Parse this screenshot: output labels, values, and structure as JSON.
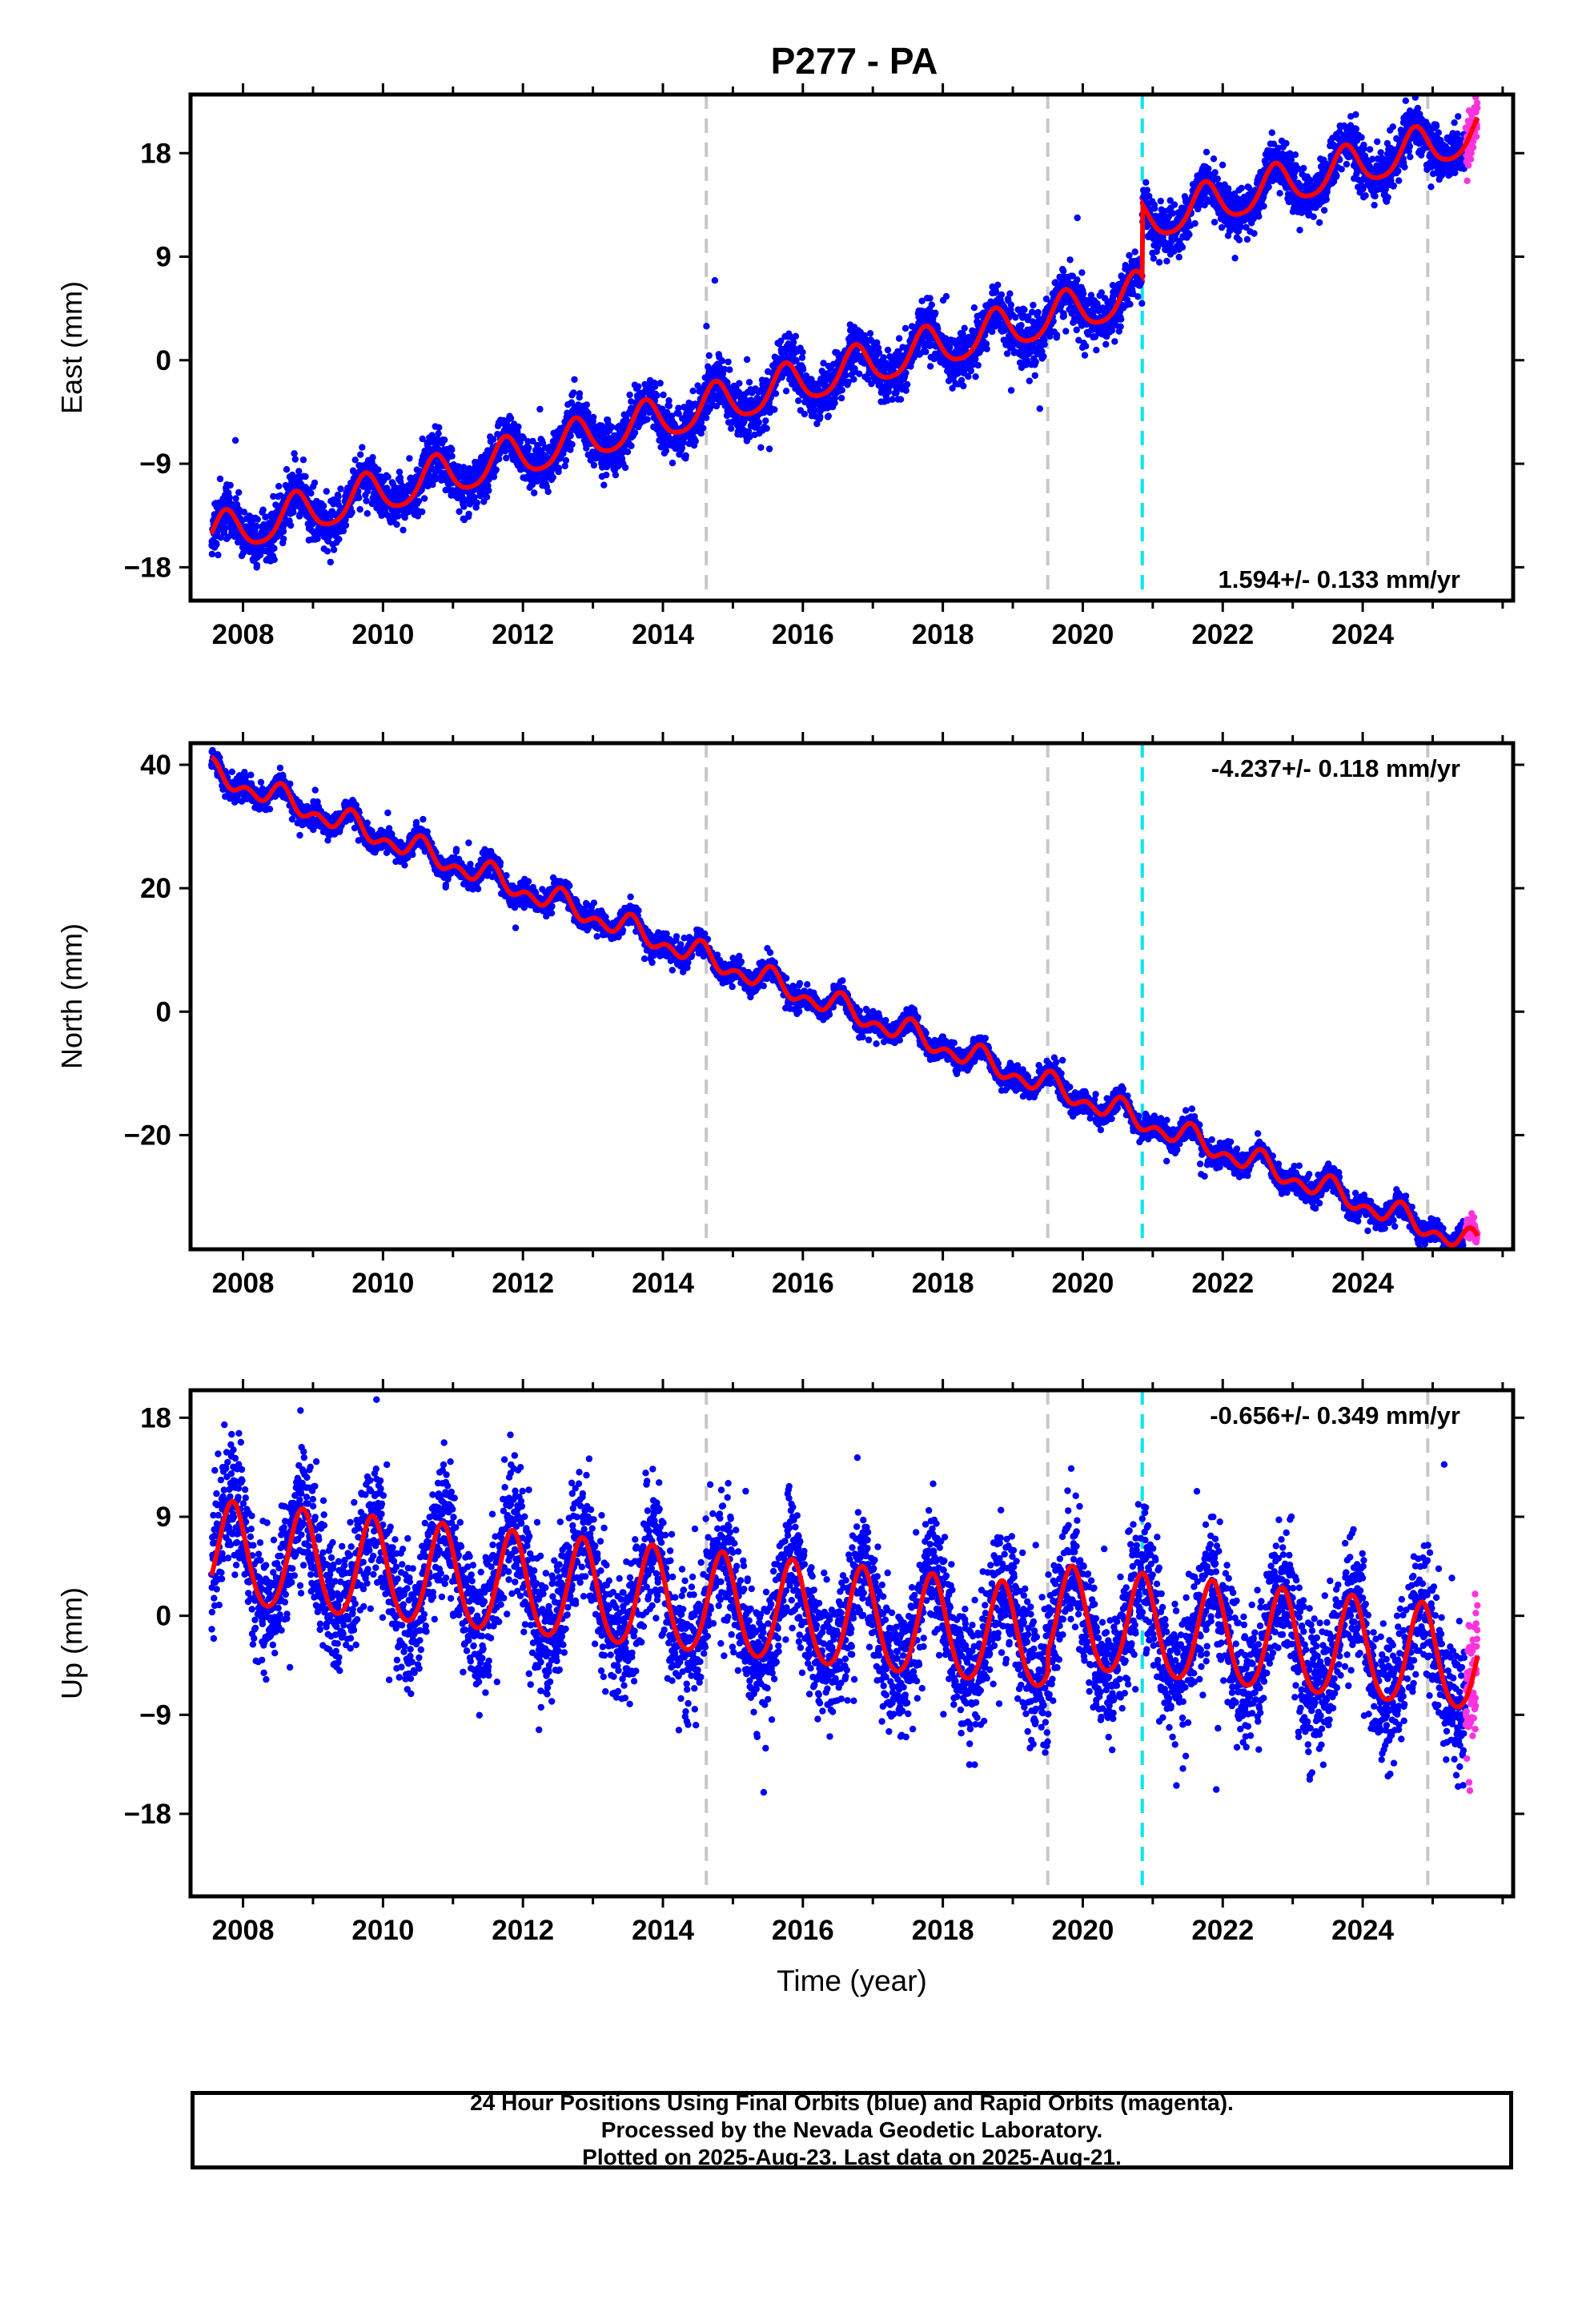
{
  "title": "P277 - PA",
  "colors": {
    "final": "#0000ff",
    "rapid": "#ff33dd",
    "model": "#ff0000",
    "equip_line": "#c8c8c8",
    "event_line": "#00e5ee",
    "frame": "#000000"
  },
  "footer": {
    "line1": "24 Hour Positions Using Final Orbits (blue) and Rapid Orbits (magenta).",
    "line2": "Processed by the Nevada Geodetic Laboratory.",
    "line3": "Plotted on 2025-Aug-23. Last data on 2025-Aug-21."
  },
  "chart_data": [
    {
      "type": "scatter",
      "ylabel": "East (mm)",
      "xlabel": "",
      "xlim": [
        2007.25,
        2026.15
      ],
      "ylim": [
        -20.9,
        23.1
      ],
      "xticks": [
        2008,
        2010,
        2012,
        2014,
        2016,
        2018,
        2020,
        2022,
        2024
      ],
      "yticks": [
        -18,
        -9,
        0,
        9,
        18
      ],
      "rate_label": "1.594+/- 0.133 mm/yr",
      "rate_label_position": "bottom-right",
      "data_start": 2007.55,
      "data_end": 2025.64,
      "rapid_start": 2025.47,
      "equipment_changes": [
        2014.62,
        2019.5,
        2024.93
      ],
      "events": [
        2020.85
      ],
      "model": {
        "start_value": -15.4,
        "rate": 1.594,
        "offsets": [
          {
            "year": 2020.85,
            "value": 6.2
          }
        ],
        "annual_amplitude": 1.8,
        "annual_phase_year": 2007.75,
        "semiannual_amplitude": 0.3,
        "semiannual_phase_year": 2007.75
      },
      "scatter_sigma": 1.1,
      "series": [
        {
          "name": "Final Orbits (blue)",
          "color": "#0000ff"
        },
        {
          "name": "Rapid Orbits (magenta)",
          "color": "#ff33dd"
        }
      ]
    },
    {
      "type": "scatter",
      "ylabel": "North (mm)",
      "xlabel": "",
      "xlim": [
        2007.25,
        2026.15
      ],
      "ylim": [
        -38.5,
        43.5
      ],
      "xticks": [
        2008,
        2010,
        2012,
        2014,
        2016,
        2018,
        2020,
        2022,
        2024
      ],
      "yticks": [
        -20,
        0,
        20,
        40
      ],
      "rate_label": "-4.237+/- 0.118 mm/yr",
      "rate_label_position": "top-right",
      "data_start": 2007.55,
      "data_end": 2025.64,
      "rapid_start": 2025.47,
      "equipment_changes": [
        2014.62,
        2019.5,
        2024.93
      ],
      "events": [
        2020.85
      ],
      "model": {
        "start_value": 38.6,
        "rate": -4.237,
        "offsets": [],
        "annual_amplitude": 1.4,
        "annual_phase_year": 2007.55,
        "semiannual_amplitude": 1.2,
        "semiannual_phase_year": 2007.55
      },
      "scatter_sigma": 0.9,
      "series": [
        {
          "name": "Final Orbits (blue)",
          "color": "#0000ff"
        },
        {
          "name": "Rapid Orbits (magenta)",
          "color": "#ff33dd"
        }
      ]
    },
    {
      "type": "scatter",
      "ylabel": "Up (mm)",
      "xlabel": "Time (year)",
      "xlim": [
        2007.25,
        2026.15
      ],
      "ylim": [
        -25.5,
        20.5
      ],
      "xticks": [
        2008,
        2010,
        2012,
        2014,
        2016,
        2018,
        2020,
        2022,
        2024
      ],
      "yticks": [
        -18,
        -9,
        0,
        9,
        18
      ],
      "rate_label": "-0.656+/- 0.349 mm/yr",
      "rate_label_position": "top-right",
      "data_start": 2007.55,
      "data_end": 2025.64,
      "rapid_start": 2025.47,
      "equipment_changes": [
        2014.62,
        2019.5,
        2024.93
      ],
      "events": [
        2020.85
      ],
      "model": {
        "start_value": 5.5,
        "rate": -0.656,
        "offsets": [
          {
            "year": 2019.5,
            "value": 2.0
          }
        ],
        "annual_amplitude": 4.6,
        "annual_phase_year": 2007.85,
        "semiannual_amplitude": 0.5,
        "semiannual_phase_year": 2007.85
      },
      "scatter_sigma": 3.0,
      "series": [
        {
          "name": "Final Orbits (blue)",
          "color": "#0000ff"
        },
        {
          "name": "Rapid Orbits (magenta)",
          "color": "#ff33dd"
        }
      ]
    }
  ]
}
